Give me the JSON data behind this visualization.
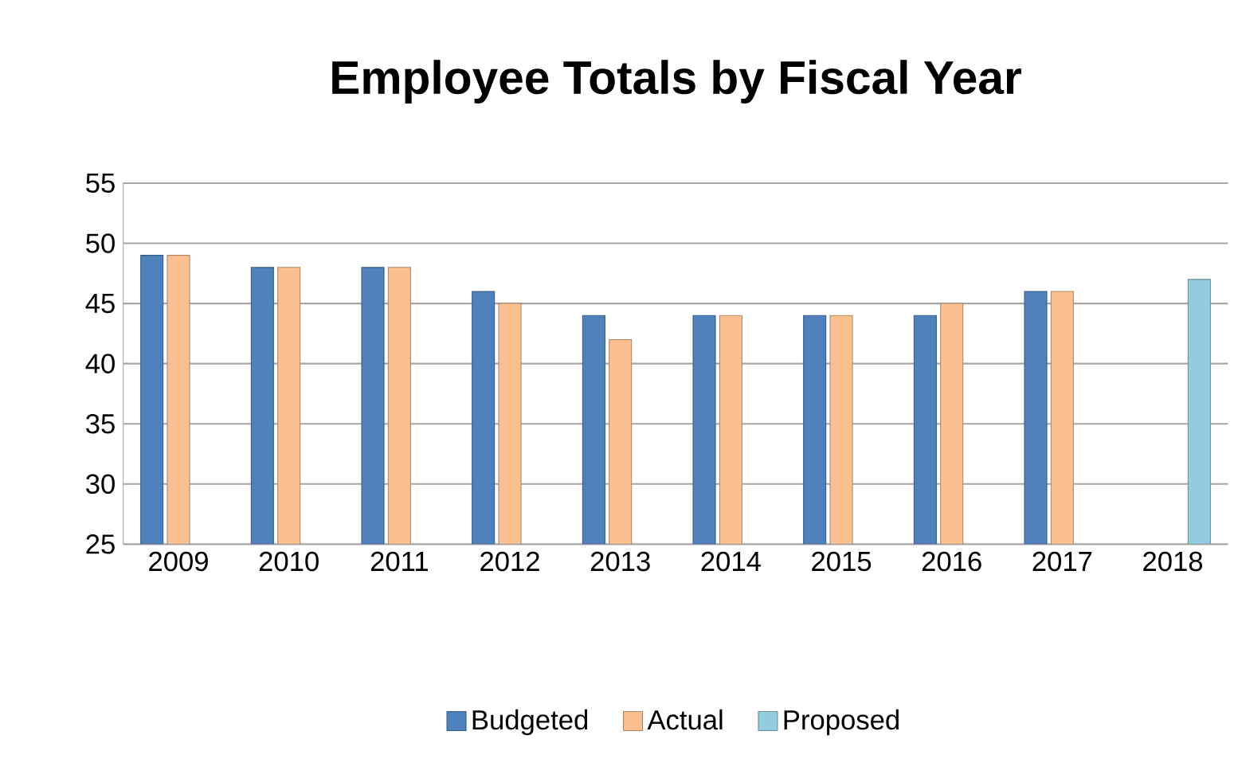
{
  "chart_data": {
    "type": "bar",
    "title": "Employee Totals by Fiscal Year",
    "categories": [
      "2009",
      "2010",
      "2011",
      "2012",
      "2013",
      "2014",
      "2015",
      "2016",
      "2017",
      "2018"
    ],
    "series": [
      {
        "name": "Budgeted",
        "color": "#4f81bd",
        "values": [
          49,
          48,
          48,
          46,
          44,
          44,
          44,
          44,
          46,
          null
        ]
      },
      {
        "name": "Actual",
        "color": "#fac090",
        "values": [
          49,
          48,
          48,
          45,
          42,
          44,
          44,
          45,
          46,
          null
        ]
      },
      {
        "name": "Proposed",
        "color": "#93cddd",
        "values": [
          null,
          null,
          null,
          null,
          null,
          null,
          null,
          null,
          null,
          47
        ]
      }
    ],
    "ylim": [
      25,
      55
    ],
    "yticks": [
      25,
      30,
      35,
      40,
      45,
      50,
      55
    ],
    "grid": "y",
    "legend": "bottom"
  }
}
